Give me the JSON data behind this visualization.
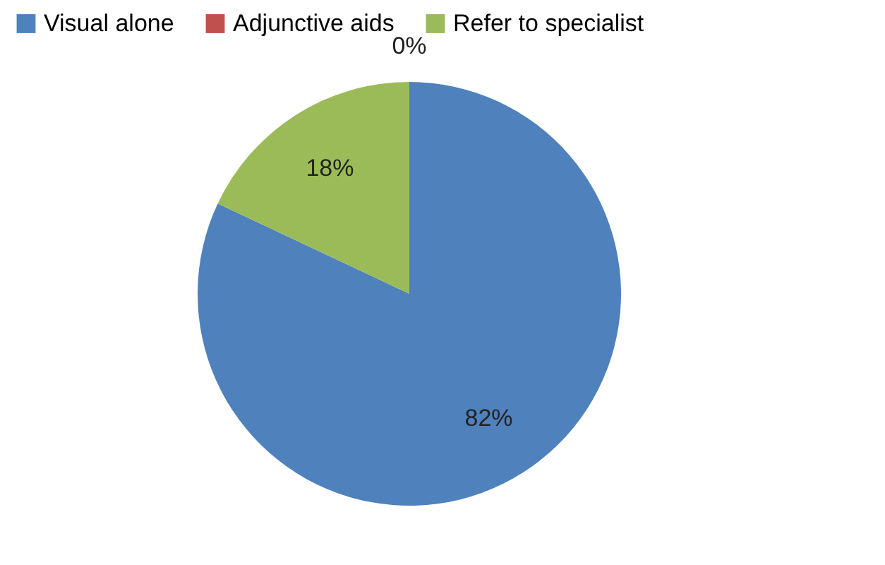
{
  "chart_data": {
    "type": "pie",
    "categories": [
      "Visual alone",
      "Adjunctive aids",
      "Refer to specialist"
    ],
    "values": [
      82,
      0,
      18
    ],
    "colors": [
      "#4f81bd",
      "#c0504d",
      "#9bbb59"
    ],
    "value_labels": [
      "82%",
      "0%",
      "18%"
    ],
    "legend": "top"
  }
}
